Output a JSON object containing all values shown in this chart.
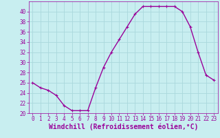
{
  "x": [
    0,
    1,
    2,
    3,
    4,
    5,
    6,
    7,
    8,
    9,
    10,
    11,
    12,
    13,
    14,
    15,
    16,
    17,
    18,
    19,
    20,
    21,
    22,
    23
  ],
  "y": [
    26,
    25,
    24.5,
    23.5,
    21.5,
    20.5,
    20.5,
    20.5,
    25,
    29,
    32,
    34.5,
    37,
    39.5,
    41,
    41,
    41,
    41,
    41,
    40,
    37,
    32,
    27.5,
    26.5
  ],
  "line_color": "#990099",
  "marker": "+",
  "bg_color": "#c8eef0",
  "grid_color": "#aad8dc",
  "xlabel": "Windchill (Refroidissement éolien,°C)",
  "ylim": [
    20,
    42
  ],
  "xlim": [
    -0.5,
    23.5
  ],
  "yticks": [
    20,
    22,
    24,
    26,
    28,
    30,
    32,
    34,
    36,
    38,
    40
  ],
  "xticks": [
    0,
    1,
    2,
    3,
    4,
    5,
    6,
    7,
    8,
    9,
    10,
    11,
    12,
    13,
    14,
    15,
    16,
    17,
    18,
    19,
    20,
    21,
    22,
    23
  ],
  "tick_color": "#990099",
  "xlabel_fontsize": 7,
  "tick_fontsize": 5.5,
  "linewidth": 1.0,
  "markersize": 3.5,
  "markeredgewidth": 0.8
}
